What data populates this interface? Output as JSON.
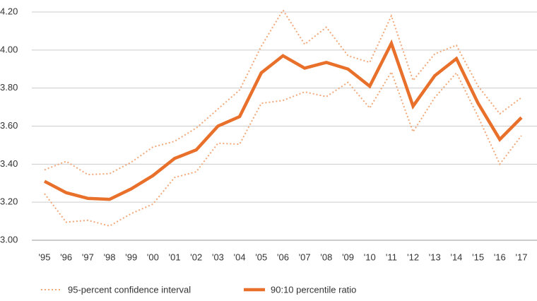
{
  "chart_data": {
    "type": "line",
    "categories": [
      "'95",
      "'96",
      "'97",
      "'98",
      "'99",
      "'00",
      "'01",
      "'02",
      "'03",
      "'04",
      "'05",
      "'06",
      "'07",
      "'08",
      "'09",
      "'10",
      "'11",
      "'12",
      "'13",
      "'14",
      "'15",
      "'16",
      "'17"
    ],
    "series": [
      {
        "name": "90:10 percentile ratio",
        "color": "#e8702a",
        "values": [
          3.31,
          3.25,
          3.22,
          3.215,
          3.27,
          3.34,
          3.43,
          3.475,
          3.6,
          3.65,
          3.88,
          3.97,
          3.905,
          3.935,
          3.9,
          3.81,
          4.035,
          3.705,
          3.865,
          3.955,
          3.72,
          3.53,
          3.645
        ]
      }
    ],
    "confidence_interval": {
      "name": "95-percent confidence interval",
      "color": "#f2a878",
      "upper": [
        3.37,
        3.415,
        3.345,
        3.35,
        3.41,
        3.49,
        3.52,
        3.59,
        3.69,
        3.79,
        4.02,
        4.21,
        4.03,
        4.12,
        3.97,
        3.935,
        4.18,
        3.84,
        3.98,
        4.025,
        3.81,
        3.665,
        3.75
      ],
      "lower": [
        3.245,
        3.095,
        3.105,
        3.075,
        3.14,
        3.19,
        3.33,
        3.36,
        3.51,
        3.505,
        3.72,
        3.735,
        3.78,
        3.755,
        3.83,
        3.695,
        3.885,
        3.57,
        3.75,
        3.88,
        3.65,
        3.4,
        3.55
      ]
    },
    "ylim": [
      3.0,
      4.2
    ],
    "yticks": [
      {
        "value": 3.0,
        "label": "3.00"
      },
      {
        "value": 3.2,
        "label": "3.20"
      },
      {
        "value": 3.4,
        "label": "3.40"
      },
      {
        "value": 3.6,
        "label": "3.60"
      },
      {
        "value": 3.8,
        "label": "3.80"
      },
      {
        "value": 4.0,
        "label": "4.00"
      },
      {
        "value": 4.2,
        "label": "4.20"
      }
    ],
    "grid": true
  }
}
